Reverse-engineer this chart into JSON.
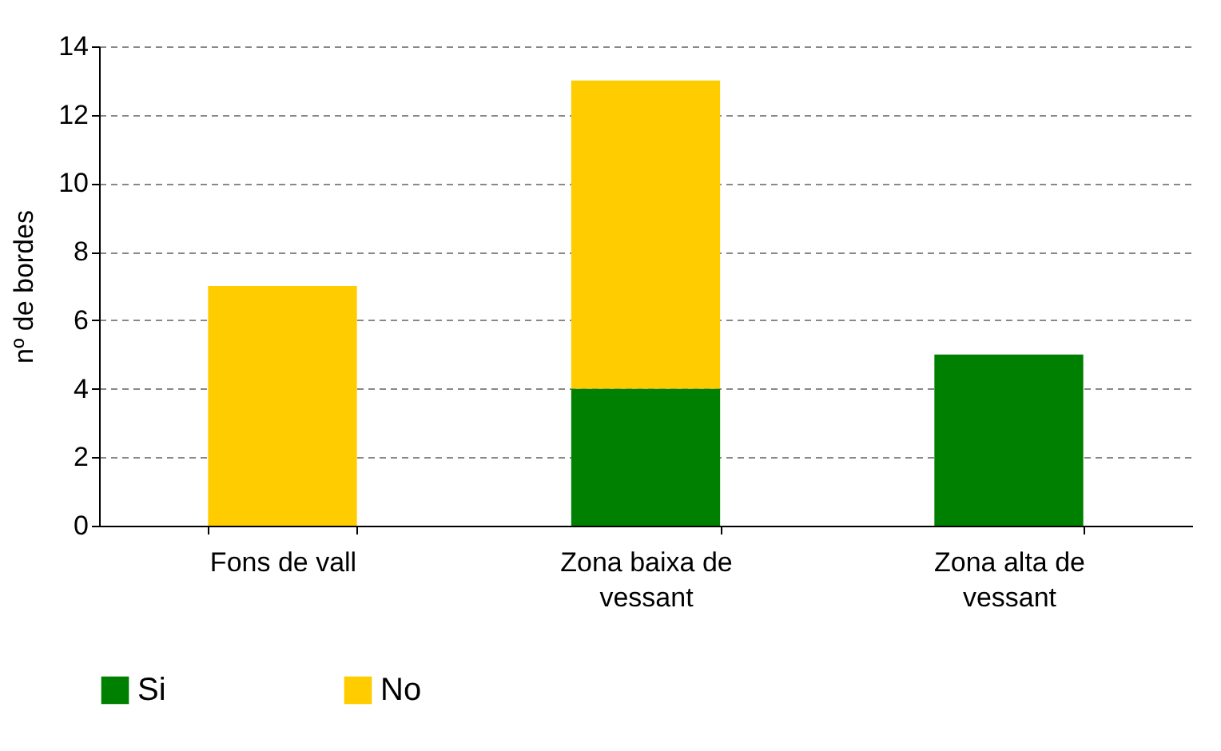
{
  "chart_data": {
    "type": "bar",
    "stacked": true,
    "ylabel": "nº de bordes",
    "categories": [
      "Fons de vall",
      "Zona baixa de vessant",
      "Zona alta de vessant"
    ],
    "series": [
      {
        "name": "Si",
        "color": "#008000",
        "values": [
          0,
          4,
          5
        ]
      },
      {
        "name": "No",
        "color": "#ffcc00",
        "values": [
          7,
          9,
          0
        ]
      }
    ],
    "ylim": [
      0,
      14
    ],
    "yticks": [
      0,
      2,
      4,
      6,
      8,
      10,
      12,
      14
    ],
    "grid": "y",
    "legend": "bottom"
  }
}
